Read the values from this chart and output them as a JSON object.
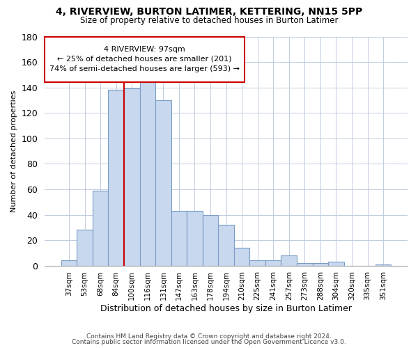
{
  "title": "4, RIVERVIEW, BURTON LATIMER, KETTERING, NN15 5PP",
  "subtitle": "Size of property relative to detached houses in Burton Latimer",
  "xlabel": "Distribution of detached houses by size in Burton Latimer",
  "ylabel": "Number of detached properties",
  "categories": [
    "37sqm",
    "53sqm",
    "68sqm",
    "84sqm",
    "100sqm",
    "116sqm",
    "131sqm",
    "147sqm",
    "163sqm",
    "178sqm",
    "194sqm",
    "210sqm",
    "225sqm",
    "241sqm",
    "257sqm",
    "273sqm",
    "288sqm",
    "304sqm",
    "320sqm",
    "335sqm",
    "351sqm"
  ],
  "values": [
    4,
    28,
    59,
    138,
    139,
    145,
    130,
    43,
    43,
    40,
    32,
    14,
    4,
    4,
    8,
    2,
    2,
    3,
    0,
    0,
    1
  ],
  "bar_color": "#c8d8ee",
  "bar_edgecolor": "#7a9cc4",
  "vline_color": "#cc0000",
  "vline_x_index": 4,
  "annotation_text_line1": "4 RIVERVIEW: 97sqm",
  "annotation_text_line2": "← 25% of detached houses are smaller (201)",
  "annotation_text_line3": "74% of semi-detached houses are larger (593) →",
  "ylim": [
    0,
    180
  ],
  "yticks": [
    0,
    20,
    40,
    60,
    80,
    100,
    120,
    140,
    160,
    180
  ],
  "footer1": "Contains HM Land Registry data © Crown copyright and database right 2024.",
  "footer2": "Contains public sector information licensed under the Open Government Licence v3.0.",
  "bg_color": "#ffffff",
  "grid_color": "#c0cce0",
  "title_fontsize": 10,
  "subtitle_fontsize": 8.5,
  "ylabel_fontsize": 8,
  "xlabel_fontsize": 9,
  "tick_fontsize": 7.5,
  "footer_fontsize": 6.5
}
